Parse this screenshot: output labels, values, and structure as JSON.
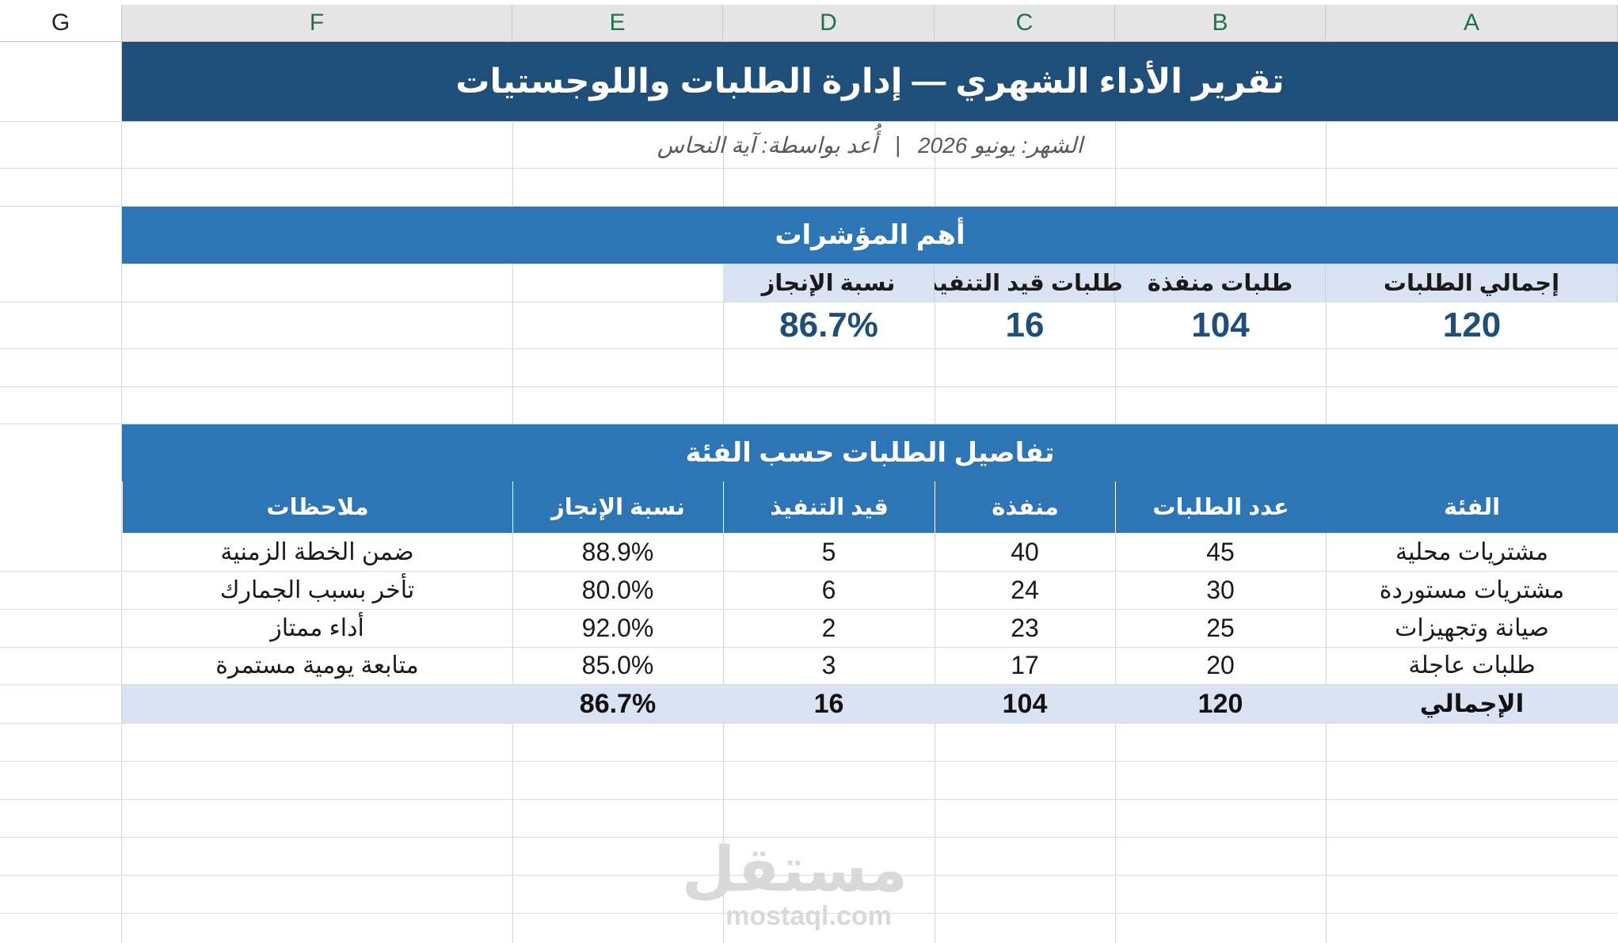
{
  "columns": [
    "G",
    "F",
    "E",
    "D",
    "C",
    "B",
    "A"
  ],
  "title": "تقرير الأداء الشهري — إدارة الطلبات واللوجستيات",
  "subtitle": {
    "month": "الشهر: يونيو 2026",
    "separator": "|",
    "author": "أُعد بواسطة: آية النحاس"
  },
  "kpi_section": {
    "title": "أهم المؤشرات",
    "labels": {
      "total": "إجمالي الطلبات",
      "done": "طلبات منفذة",
      "pending": "طلبات قيد التنفيذ",
      "rate": "نسبة الإنجاز"
    },
    "values": {
      "total": "120",
      "done": "104",
      "pending": "16",
      "rate": "86.7%"
    }
  },
  "details": {
    "title": "تفاصيل الطلبات حسب الفئة",
    "headers": {
      "category": "الفئة",
      "count": "عدد الطلبات",
      "done": "منفذة",
      "pending": "قيد التنفيذ",
      "rate": "نسبة الإنجاز",
      "notes": "ملاحظات"
    },
    "rows": [
      {
        "category": "مشتريات محلية",
        "count": "45",
        "done": "40",
        "pending": "5",
        "rate": "88.9%",
        "notes": "ضمن الخطة الزمنية"
      },
      {
        "category": "مشتريات مستوردة",
        "count": "30",
        "done": "24",
        "pending": "6",
        "rate": "80.0%",
        "notes": "تأخر بسبب الجمارك"
      },
      {
        "category": "صيانة وتجهيزات",
        "count": "25",
        "done": "23",
        "pending": "2",
        "rate": "92.0%",
        "notes": "أداء ممتاز"
      },
      {
        "category": "طلبات عاجلة",
        "count": "20",
        "done": "17",
        "pending": "3",
        "rate": "85.0%",
        "notes": "متابعة يومية مستمرة"
      }
    ],
    "total": {
      "label": "الإجمالي",
      "count": "120",
      "done": "104",
      "pending": "16",
      "rate": "86.7%",
      "notes": ""
    }
  },
  "watermark": {
    "arabic": "مستقل",
    "latin": "mostaql.com"
  },
  "colors": {
    "title_band": "#1f4e79",
    "section_band": "#2e75b6",
    "light_fill": "#dae3f3",
    "column_letter": "#217346"
  }
}
